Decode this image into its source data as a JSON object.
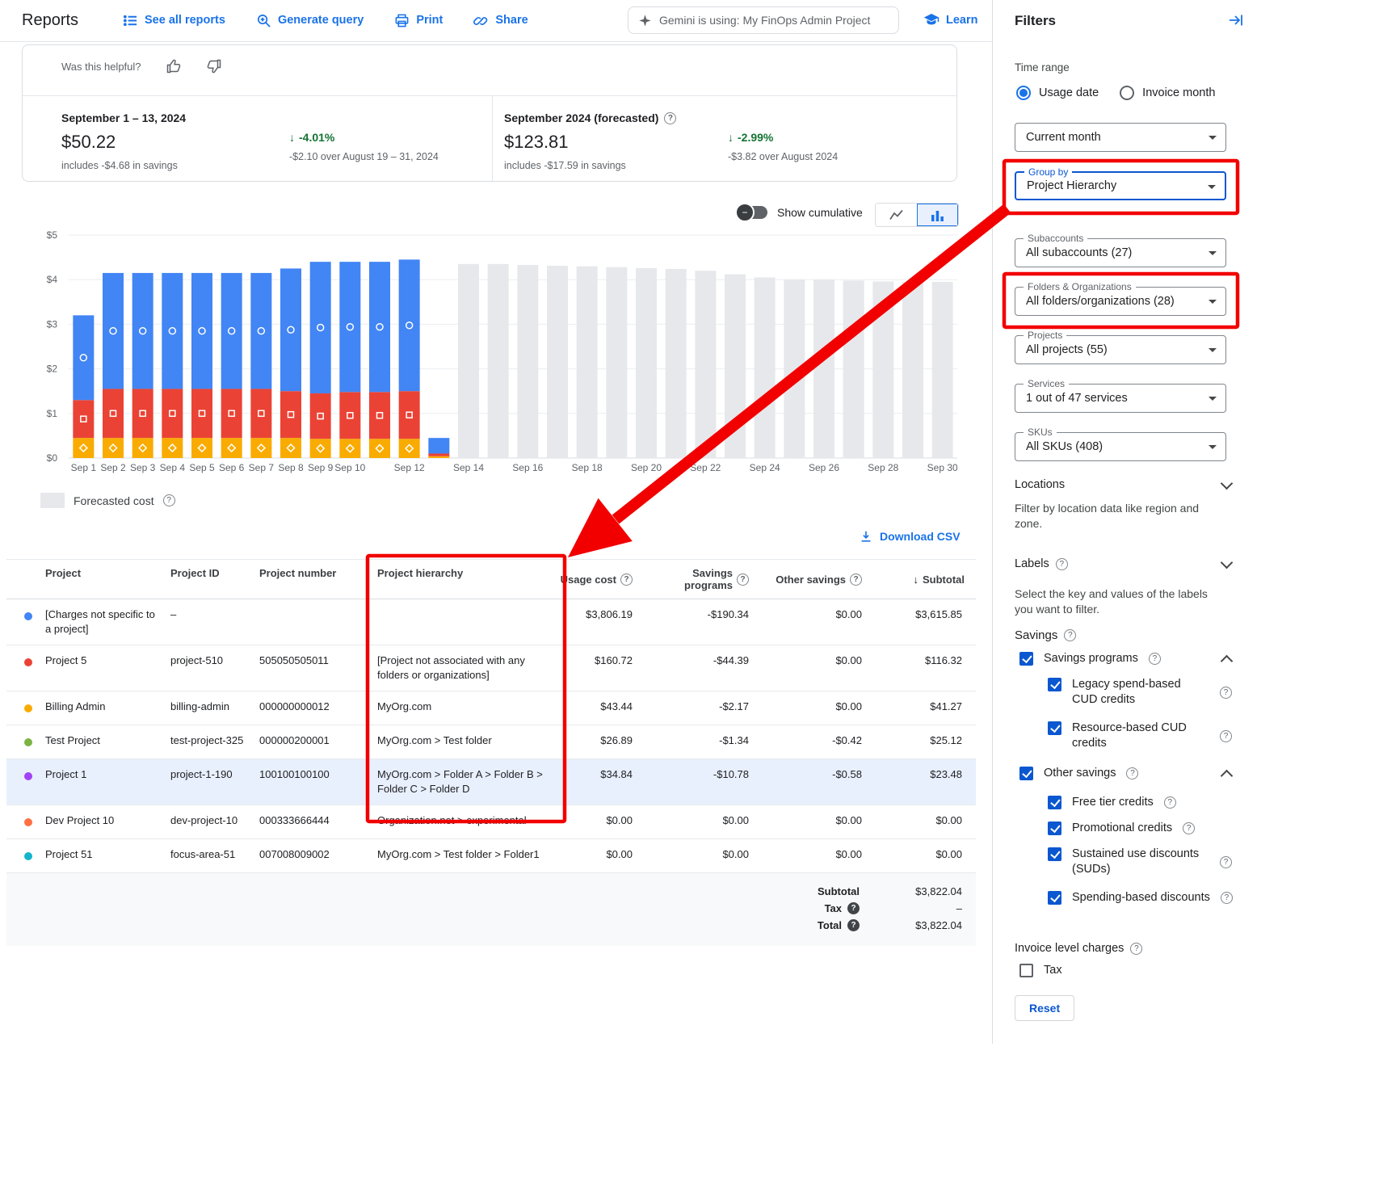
{
  "icons": {
    "help": "?",
    "down_arrow": "↓",
    "sort_desc": "↓",
    "caret": "▾"
  },
  "topbar": {
    "title": "Reports",
    "see_all_reports": "See all reports",
    "generate_query": "Generate query",
    "print": "Print",
    "share": "Share",
    "gemini": "Gemini is using: My FinOps Admin Project",
    "learn": "Learn"
  },
  "feedback": {
    "question": "Was this helpful?"
  },
  "summary": {
    "left": {
      "period": "September 1 – 13, 2024",
      "amount": "$50.22",
      "savings_note": "includes -$4.68 in savings",
      "delta": "-4.01%",
      "delta_note": "-$2.10 over August 19 – 31, 2024"
    },
    "right": {
      "period": "September 2024 (forecasted)",
      "amount": "$123.81",
      "savings_note": "includes -$17.59 in savings",
      "delta": "-2.99%",
      "delta_note": "-$3.82 over August 2024"
    }
  },
  "chart_controls": {
    "cumulative_label": "Show cumulative"
  },
  "chart_data": {
    "type": "bar",
    "stacked": true,
    "title": "",
    "xlabel": "",
    "ylabel": "",
    "ylim": [
      0,
      5
    ],
    "yticks": [
      "$0",
      "$1",
      "$2",
      "$3",
      "$4",
      "$5"
    ],
    "grid": true,
    "legend_label": "Forecasted cost",
    "series_colors": {
      "blue": "#4285f4",
      "red": "#ea4335",
      "yellow": "#f9ab00",
      "forecast": "#e6e8eb"
    },
    "marker_shapes": {
      "blue": "circle",
      "red": "square",
      "yellow": "diamond"
    },
    "days": [
      {
        "label": "Sep 1",
        "tick": "Sep 1",
        "type": "actual",
        "yellow": 0.45,
        "red": 0.85,
        "blue": 1.9
      },
      {
        "label": "Sep 2",
        "tick": "Sep 2",
        "type": "actual",
        "yellow": 0.45,
        "red": 1.1,
        "blue": 2.6
      },
      {
        "label": "Sep 3",
        "tick": "Sep 3",
        "type": "actual",
        "yellow": 0.45,
        "red": 1.1,
        "blue": 2.6
      },
      {
        "label": "Sep 4",
        "tick": "Sep 4",
        "type": "actual",
        "yellow": 0.45,
        "red": 1.1,
        "blue": 2.6
      },
      {
        "label": "Sep 5",
        "tick": "Sep 5",
        "type": "actual",
        "yellow": 0.45,
        "red": 1.1,
        "blue": 2.6
      },
      {
        "label": "Sep 6",
        "tick": "Sep 6",
        "type": "actual",
        "yellow": 0.45,
        "red": 1.1,
        "blue": 2.6
      },
      {
        "label": "Sep 7",
        "tick": "Sep 7",
        "type": "actual",
        "yellow": 0.45,
        "red": 1.1,
        "blue": 2.6
      },
      {
        "label": "Sep 8",
        "tick": "Sep 8",
        "type": "actual",
        "yellow": 0.45,
        "red": 1.05,
        "blue": 2.75
      },
      {
        "label": "Sep 9",
        "tick": "Sep 9",
        "type": "actual",
        "yellow": 0.43,
        "red": 1.02,
        "blue": 2.95
      },
      {
        "label": "Sep 10",
        "tick": "Sep 10",
        "type": "actual",
        "yellow": 0.43,
        "red": 1.05,
        "blue": 2.92
      },
      {
        "label": "Sep 11",
        "tick": null,
        "type": "actual",
        "yellow": 0.43,
        "red": 1.05,
        "blue": 2.92
      },
      {
        "label": "Sep 12",
        "tick": "Sep 12",
        "type": "actual",
        "yellow": 0.43,
        "red": 1.07,
        "blue": 2.95
      },
      {
        "label": "Sep 13",
        "tick": null,
        "type": "actual",
        "yellow": 0.04,
        "red": 0.06,
        "blue": 0.35
      },
      {
        "label": "Sep 14",
        "tick": "Sep 14",
        "type": "forecast",
        "value": 4.35
      },
      {
        "label": "Sep 15",
        "tick": null,
        "type": "forecast",
        "value": 4.35
      },
      {
        "label": "Sep 16",
        "tick": "Sep 16",
        "type": "forecast",
        "value": 4.33
      },
      {
        "label": "Sep 17",
        "tick": null,
        "type": "forecast",
        "value": 4.31
      },
      {
        "label": "Sep 18",
        "tick": "Sep 18",
        "type": "forecast",
        "value": 4.3
      },
      {
        "label": "Sep 19",
        "tick": null,
        "type": "forecast",
        "value": 4.28
      },
      {
        "label": "Sep 20",
        "tick": "Sep 20",
        "type": "forecast",
        "value": 4.26
      },
      {
        "label": "Sep 21",
        "tick": null,
        "type": "forecast",
        "value": 4.24
      },
      {
        "label": "Sep 22",
        "tick": "Sep 22",
        "type": "forecast",
        "value": 4.2
      },
      {
        "label": "Sep 23",
        "tick": null,
        "type": "forecast",
        "value": 4.12
      },
      {
        "label": "Sep 24",
        "tick": "Sep 24",
        "type": "forecast",
        "value": 4.05
      },
      {
        "label": "Sep 25",
        "tick": null,
        "type": "forecast",
        "value": 4.0
      },
      {
        "label": "Sep 26",
        "tick": "Sep 26",
        "type": "forecast",
        "value": 4.0
      },
      {
        "label": "Sep 27",
        "tick": null,
        "type": "forecast",
        "value": 3.98
      },
      {
        "label": "Sep 28",
        "tick": "Sep 28",
        "type": "forecast",
        "value": 3.96
      },
      {
        "label": "Sep 29",
        "tick": null,
        "type": "forecast",
        "value": 3.95
      },
      {
        "label": "Sep 30",
        "tick": "Sep 30",
        "type": "forecast",
        "value": 3.95
      }
    ]
  },
  "legend": {
    "forecast": "Forecasted cost"
  },
  "table": {
    "download": "Download CSV",
    "columns": {
      "project": "Project",
      "id": "Project ID",
      "number": "Project number",
      "hierarchy": "Project hierarchy",
      "usage": "Usage cost",
      "savings": "Savings programs",
      "other": "Other savings",
      "subtotal": "Subtotal"
    },
    "rows": [
      {
        "color": "#4285f4",
        "project": "[Charges not specific to a project]",
        "id": "–",
        "number": "",
        "hierarchy": "",
        "usage": "$3,806.19",
        "savings": "-$190.34",
        "other": "$0.00",
        "subtotal": "$3,615.85",
        "highlighted": false
      },
      {
        "color": "#ea4335",
        "project": "Project 5",
        "id": "project-510",
        "number": "505050505011",
        "hierarchy": "[Project not associated with any folders or organizations]",
        "usage": "$160.72",
        "savings": "-$44.39",
        "other": "$0.00",
        "subtotal": "$116.32",
        "highlighted": false
      },
      {
        "color": "#f9ab00",
        "project": "Billing Admin",
        "id": "billing-admin",
        "number": "000000000012",
        "hierarchy": "MyOrg.com",
        "usage": "$43.44",
        "savings": "-$2.17",
        "other": "$0.00",
        "subtotal": "$41.27",
        "highlighted": false
      },
      {
        "color": "#7cb342",
        "project": "Test Project",
        "id": "test-project-325",
        "number": "000000200001",
        "hierarchy": "MyOrg.com > Test folder",
        "usage": "$26.89",
        "savings": "-$1.34",
        "other": "-$0.42",
        "subtotal": "$25.12",
        "highlighted": false
      },
      {
        "color": "#a142f4",
        "project": "Project 1",
        "id": "project-1-190",
        "number": "100100100100",
        "hierarchy": "MyOrg.com > Folder A > Folder B > Folder C > Folder D",
        "usage": "$34.84",
        "savings": "-$10.78",
        "other": "-$0.58",
        "subtotal": "$23.48",
        "highlighted": true
      },
      {
        "color": "#ff7043",
        "project": "Dev Project 10",
        "id": "dev-project-10",
        "number": "000333666444",
        "hierarchy": "Organization.net > experimental",
        "usage": "$0.00",
        "savings": "$0.00",
        "other": "$0.00",
        "subtotal": "$0.00",
        "highlighted": false
      },
      {
        "color": "#12b5cb",
        "project": "Project 51",
        "id": "focus-area-51",
        "number": "007008009002",
        "hierarchy": "MyOrg.com > Test folder > Folder1",
        "usage": "$0.00",
        "savings": "$0.00",
        "other": "$0.00",
        "subtotal": "$0.00",
        "highlighted": false
      }
    ],
    "footer": {
      "subtotal_label": "Subtotal",
      "subtotal": "$3,822.04",
      "tax_label": "Tax",
      "tax": "–",
      "total_label": "Total",
      "total": "$3,822.04"
    }
  },
  "filters": {
    "title": "Filters",
    "time_range_label": "Time range",
    "radio_usage": "Usage date",
    "radio_invoice": "Invoice month",
    "radios": {
      "usage_date": true,
      "invoice_month": false
    },
    "time_select_value": "Current month",
    "group_by": {
      "label": "Group by",
      "value": "Project Hierarchy"
    },
    "subaccounts": {
      "label": "Subaccounts",
      "value": "All subaccounts (27)"
    },
    "folders": {
      "label": "Folders & Organizations",
      "value": "All folders/organizations (28)"
    },
    "projects": {
      "label": "Projects",
      "value": "All projects (55)"
    },
    "services": {
      "label": "Services",
      "value": "1 out of 47 services"
    },
    "skus": {
      "label": "SKUs",
      "value": "All SKUs (408)"
    },
    "locations_title": "Locations",
    "locations_desc": "Filter by location data like region and zone.",
    "labels_title": "Labels",
    "labels_desc": "Select the key and values of the labels you want to filter.",
    "savings_title": "Savings",
    "savings_programs": "Savings programs",
    "legacy_cud": "Legacy spend-based CUD credits",
    "resource_cud": "Resource-based CUD credits",
    "other_savings": "Other savings",
    "free_tier": "Free tier credits",
    "promotional": "Promotional credits",
    "suds": "Sustained use discounts (SUDs)",
    "spending_based": "Spending-based discounts",
    "invoice_level": "Invoice level charges",
    "tax_label": "Tax",
    "reset": "Reset",
    "checks": {
      "savings_programs": true,
      "legacy": true,
      "resource": true,
      "other_savings": true,
      "free_tier": true,
      "promotional": true,
      "suds": true,
      "spending": true,
      "tax": false
    }
  },
  "annotations": {
    "highlight_color": "#f20000"
  }
}
